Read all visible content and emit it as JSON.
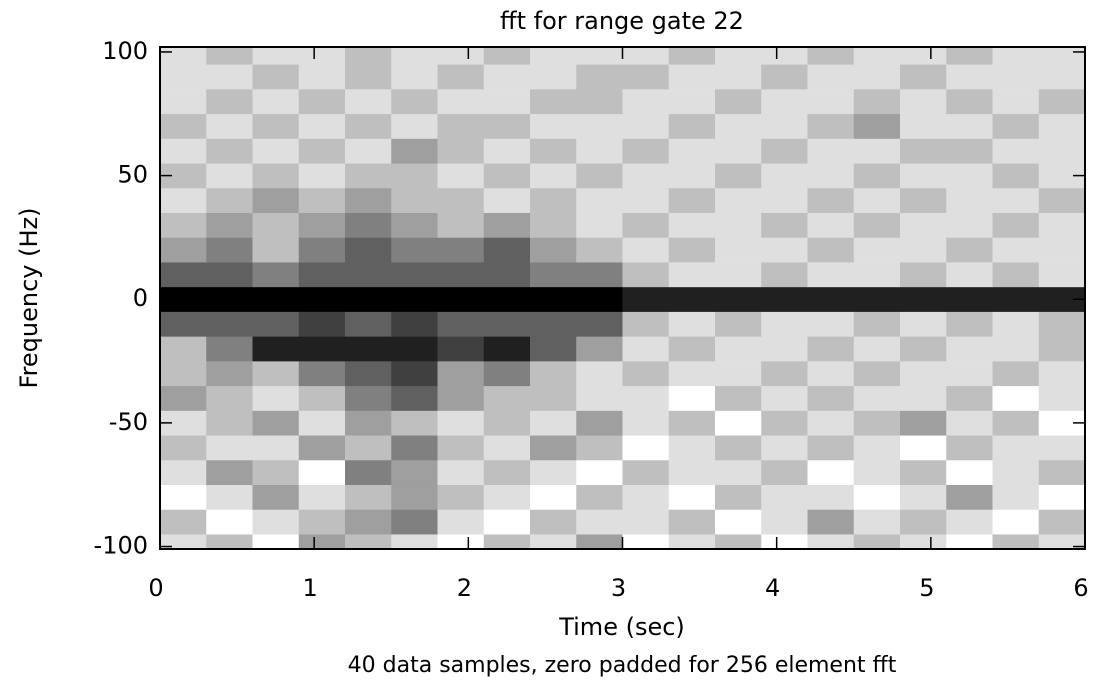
{
  "chart_data": {
    "type": "heatmap",
    "title": "fft for range gate 22",
    "xlabel": "Time (sec)",
    "ylabel": "Frequency (Hz)",
    "annotation": "40 data samples, zero padded for  256 element fft",
    "xlim": [
      0,
      6
    ],
    "ylim": [
      -101,
      102
    ],
    "xticks": [
      0,
      1,
      2,
      3,
      4,
      5,
      6
    ],
    "yticks": [
      -100,
      -50,
      0,
      50,
      100
    ],
    "colormap": [
      "#ffffff",
      "#000000"
    ],
    "xbins": [
      0,
      0.3,
      0.6,
      0.9,
      1.2,
      1.5,
      1.8,
      2.1,
      2.4,
      2.7,
      3.0,
      3.3,
      3.6,
      3.9,
      4.2,
      4.5,
      4.8,
      5.1,
      5.4,
      5.7,
      6.0
    ],
    "ybins": [
      -105,
      -95,
      -85,
      -75,
      -65,
      -55,
      -45,
      -35,
      -25,
      -15,
      -5,
      5,
      15,
      25,
      35,
      45,
      55,
      65,
      75,
      85,
      95,
      105
    ],
    "values": [
      [
        2,
        3,
        1,
        4,
        3,
        2,
        1,
        3,
        2,
        4,
        1,
        2,
        3,
        1,
        2,
        3,
        2,
        1,
        3,
        2
      ],
      [
        3,
        1,
        2,
        3,
        4,
        5,
        2,
        1,
        3,
        2,
        2,
        3,
        1,
        2,
        4,
        2,
        3,
        2,
        1,
        3
      ],
      [
        1,
        2,
        4,
        2,
        3,
        4,
        3,
        2,
        1,
        3,
        2,
        1,
        3,
        2,
        2,
        1,
        2,
        4,
        2,
        1
      ],
      [
        2,
        4,
        3,
        1,
        5,
        4,
        2,
        3,
        2,
        1,
        3,
        2,
        2,
        3,
        1,
        2,
        3,
        1,
        2,
        3
      ],
      [
        3,
        2,
        2,
        4,
        3,
        5,
        3,
        2,
        4,
        3,
        1,
        2,
        3,
        2,
        3,
        2,
        1,
        3,
        2,
        2
      ],
      [
        2,
        3,
        4,
        2,
        4,
        3,
        2,
        3,
        2,
        4,
        2,
        3,
        1,
        3,
        2,
        3,
        4,
        2,
        3,
        1
      ],
      [
        4,
        3,
        2,
        3,
        5,
        6,
        4,
        3,
        3,
        2,
        2,
        1,
        3,
        2,
        3,
        2,
        2,
        3,
        1,
        2
      ],
      [
        3,
        4,
        3,
        5,
        6,
        7,
        4,
        5,
        3,
        2,
        3,
        2,
        2,
        3,
        2,
        3,
        2,
        2,
        3,
        2
      ],
      [
        3,
        5,
        8,
        8,
        8,
        8,
        7,
        8,
        6,
        4,
        2,
        3,
        2,
        2,
        3,
        2,
        3,
        2,
        2,
        3
      ],
      [
        6,
        6,
        6,
        7,
        6,
        7,
        6,
        6,
        6,
        6,
        3,
        2,
        3,
        2,
        2,
        3,
        2,
        3,
        2,
        3
      ],
      [
        9,
        9,
        9,
        9,
        9,
        9,
        9,
        9,
        9,
        9,
        8,
        8,
        8,
        8,
        8,
        8,
        8,
        8,
        8,
        8
      ],
      [
        6,
        6,
        5,
        6,
        6,
        6,
        6,
        6,
        5,
        5,
        3,
        2,
        2,
        3,
        2,
        2,
        3,
        2,
        3,
        2
      ],
      [
        4,
        5,
        3,
        5,
        6,
        5,
        5,
        6,
        4,
        3,
        2,
        3,
        2,
        2,
        3,
        2,
        2,
        3,
        2,
        2
      ],
      [
        3,
        4,
        3,
        4,
        5,
        4,
        3,
        4,
        3,
        2,
        3,
        2,
        2,
        3,
        2,
        3,
        2,
        2,
        3,
        2
      ],
      [
        2,
        3,
        4,
        3,
        4,
        3,
        3,
        2,
        3,
        2,
        2,
        3,
        2,
        2,
        3,
        2,
        3,
        2,
        2,
        3
      ],
      [
        3,
        2,
        3,
        2,
        3,
        3,
        2,
        3,
        2,
        3,
        2,
        2,
        3,
        2,
        2,
        3,
        2,
        2,
        3,
        2
      ],
      [
        2,
        3,
        2,
        3,
        2,
        4,
        3,
        2,
        3,
        2,
        3,
        2,
        2,
        3,
        2,
        2,
        3,
        3,
        2,
        2
      ],
      [
        3,
        2,
        3,
        2,
        3,
        2,
        3,
        3,
        2,
        2,
        2,
        3,
        2,
        2,
        3,
        4,
        2,
        2,
        3,
        2
      ],
      [
        2,
        3,
        2,
        3,
        2,
        3,
        2,
        2,
        3,
        3,
        2,
        2,
        3,
        2,
        2,
        3,
        2,
        3,
        2,
        3
      ],
      [
        2,
        2,
        3,
        2,
        3,
        2,
        3,
        2,
        2,
        3,
        3,
        2,
        2,
        3,
        2,
        2,
        3,
        2,
        2,
        2
      ],
      [
        2,
        3,
        2,
        2,
        3,
        2,
        2,
        3,
        2,
        2,
        2,
        3,
        2,
        2,
        3,
        2,
        2,
        3,
        2,
        2
      ]
    ]
  }
}
